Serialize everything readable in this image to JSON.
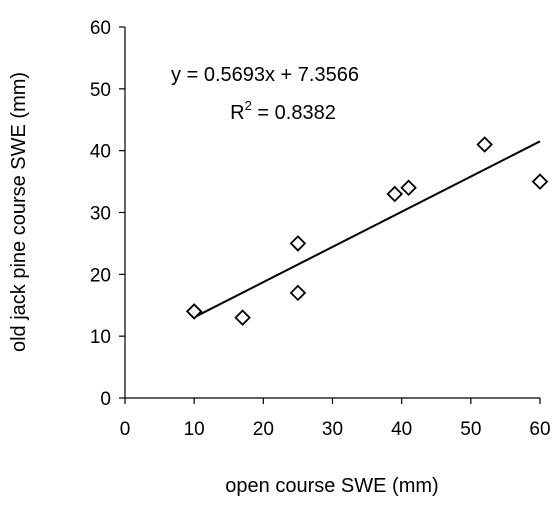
{
  "chart_data": {
    "type": "scatter",
    "xlabel": "open course SWE (mm)",
    "ylabel": "old jack pine course SWE (mm)",
    "xlim": [
      0,
      60
    ],
    "ylim": [
      0,
      60
    ],
    "x_ticks": [
      "0",
      "10",
      "20",
      "30",
      "40",
      "50",
      "60"
    ],
    "y_ticks": [
      "0",
      "10",
      "20",
      "30",
      "40",
      "50",
      "60"
    ],
    "grid": false,
    "legend": "none",
    "marker": "diamond-open",
    "series": [
      {
        "points": [
          {
            "x": 10,
            "y": 14
          },
          {
            "x": 17,
            "y": 13
          },
          {
            "x": 25,
            "y": 25
          },
          {
            "x": 25,
            "y": 17
          },
          {
            "x": 39,
            "y": 33
          },
          {
            "x": 41,
            "y": 34
          },
          {
            "x": 52,
            "y": 41
          },
          {
            "x": 60,
            "y": 35
          }
        ]
      }
    ],
    "trendline": {
      "slope": 0.5693,
      "intercept": 7.3566,
      "x_range": [
        10,
        60
      ]
    },
    "annotations": {
      "equation": "y = 0.5693x + 7.3566",
      "r2_prefix": "R",
      "r2_sup": "2",
      "r2_value": " = 0.8382"
    }
  }
}
